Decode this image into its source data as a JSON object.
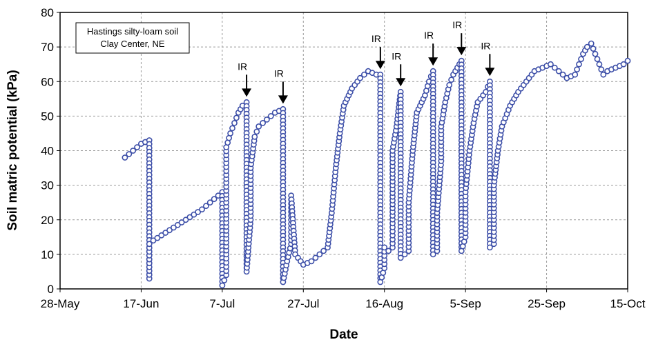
{
  "chart_data": {
    "type": "scatter",
    "xlabel": "Date",
    "ylabel": "Soil matric potential (kPa)",
    "ylim": [
      0,
      80
    ],
    "yticks": [
      0,
      10,
      20,
      30,
      40,
      50,
      60,
      70,
      80
    ],
    "xlim": [
      "2006-05-28",
      "2006-10-15"
    ],
    "xticks": [
      "28-May",
      "17-Jun",
      "7-Jul",
      "27-Jul",
      "16-Aug",
      "5-Sep",
      "25-Sep",
      "15-Oct"
    ],
    "grid": true,
    "marker_color": "#3d4fa8",
    "annotation_box": [
      "Hastings silty-loam soil",
      "Clay Center, NE"
    ],
    "irrigation_label": "IR",
    "irrigation_events": [
      {
        "date": "2006-07-13",
        "value": 54
      },
      {
        "date": "2006-07-22",
        "value": 52
      },
      {
        "date": "2006-08-15",
        "value": 62
      },
      {
        "date": "2006-08-20",
        "value": 57
      },
      {
        "date": "2006-08-28",
        "value": 63
      },
      {
        "date": "2006-09-04",
        "value": 66
      },
      {
        "date": "2006-09-11",
        "value": 60
      }
    ],
    "series": [
      {
        "points": [
          [
            "2006-06-13",
            38
          ],
          [
            "2006-06-14",
            39
          ],
          [
            "2006-06-15",
            40
          ],
          [
            "2006-06-16",
            41
          ],
          [
            "2006-06-17",
            42
          ],
          [
            "2006-06-18",
            42.5
          ],
          [
            "2006-06-19",
            43
          ],
          [
            "2006-06-19",
            3
          ],
          [
            "2006-06-19",
            13
          ],
          [
            "2006-06-20",
            14
          ],
          [
            "2006-06-22",
            15.5
          ],
          [
            "2006-06-24",
            17
          ],
          [
            "2006-06-26",
            18.5
          ],
          [
            "2006-06-28",
            20
          ],
          [
            "2006-06-30",
            21.5
          ],
          [
            "2006-07-02",
            23
          ],
          [
            "2006-07-04",
            25
          ],
          [
            "2006-07-06",
            27
          ],
          [
            "2006-07-07",
            28
          ],
          [
            "2006-07-07",
            1
          ],
          [
            "2006-07-08",
            4
          ],
          [
            "2006-07-08",
            10
          ],
          [
            "2006-07-08",
            18
          ],
          [
            "2006-07-08",
            25
          ],
          [
            "2006-07-08",
            33
          ],
          [
            "2006-07-08",
            41
          ],
          [
            "2006-07-09",
            45
          ],
          [
            "2006-07-10",
            48
          ],
          [
            "2006-07-11",
            51
          ],
          [
            "2006-07-12",
            53
          ],
          [
            "2006-07-13",
            54
          ],
          [
            "2006-07-13",
            5
          ],
          [
            "2006-07-14",
            20
          ],
          [
            "2006-07-14",
            35
          ],
          [
            "2006-07-15",
            44
          ],
          [
            "2006-07-16",
            47
          ],
          [
            "2006-07-18",
            49
          ],
          [
            "2006-07-20",
            51
          ],
          [
            "2006-07-22",
            52
          ],
          [
            "2006-07-22",
            2
          ],
          [
            "2006-07-23",
            8
          ],
          [
            "2006-07-24",
            13
          ],
          [
            "2006-07-24",
            20
          ],
          [
            "2006-07-24",
            27
          ],
          [
            "2006-07-25",
            10
          ],
          [
            "2006-07-27",
            7
          ],
          [
            "2006-07-29",
            8
          ],
          [
            "2006-07-31",
            10
          ],
          [
            "2006-08-02",
            12
          ],
          [
            "2006-08-03",
            22
          ],
          [
            "2006-08-04",
            35
          ],
          [
            "2006-08-05",
            45
          ],
          [
            "2006-08-06",
            53
          ],
          [
            "2006-08-08",
            58
          ],
          [
            "2006-08-10",
            61
          ],
          [
            "2006-08-12",
            63
          ],
          [
            "2006-08-14",
            62
          ],
          [
            "2006-08-15",
            62
          ],
          [
            "2006-08-15",
            2
          ],
          [
            "2006-08-16",
            6
          ],
          [
            "2006-08-16",
            12
          ],
          [
            "2006-08-17",
            11
          ],
          [
            "2006-08-18",
            12
          ],
          [
            "2006-08-18",
            19
          ],
          [
            "2006-08-18",
            30
          ],
          [
            "2006-08-18",
            40
          ],
          [
            "2006-08-19",
            47
          ],
          [
            "2006-08-20",
            57
          ],
          [
            "2006-08-20",
            9
          ],
          [
            "2006-08-21",
            10
          ],
          [
            "2006-08-22",
            11
          ],
          [
            "2006-08-22",
            25
          ],
          [
            "2006-08-23",
            40
          ],
          [
            "2006-08-24",
            51
          ],
          [
            "2006-08-26",
            56
          ],
          [
            "2006-08-27",
            60
          ],
          [
            "2006-08-28",
            63
          ],
          [
            "2006-08-28",
            10
          ],
          [
            "2006-08-29",
            11
          ],
          [
            "2006-08-29",
            22
          ],
          [
            "2006-08-30",
            37
          ],
          [
            "2006-08-30",
            47
          ],
          [
            "2006-08-31",
            54
          ],
          [
            "2006-09-01",
            59
          ],
          [
            "2006-09-02",
            62
          ],
          [
            "2006-09-03",
            64
          ],
          [
            "2006-09-04",
            66
          ],
          [
            "2006-09-04",
            11
          ],
          [
            "2006-09-05",
            15
          ],
          [
            "2006-09-05",
            28
          ],
          [
            "2006-09-06",
            40
          ],
          [
            "2006-09-07",
            48
          ],
          [
            "2006-09-08",
            54
          ],
          [
            "2006-09-10",
            57
          ],
          [
            "2006-09-11",
            60
          ],
          [
            "2006-09-11",
            12
          ],
          [
            "2006-09-12",
            13
          ],
          [
            "2006-09-12",
            20
          ],
          [
            "2006-09-12",
            30
          ],
          [
            "2006-09-13",
            40
          ],
          [
            "2006-09-14",
            47
          ],
          [
            "2006-09-16",
            53
          ],
          [
            "2006-09-18",
            57
          ],
          [
            "2006-09-20",
            60
          ],
          [
            "2006-09-22",
            63
          ],
          [
            "2006-09-24",
            64
          ],
          [
            "2006-09-26",
            65
          ],
          [
            "2006-09-28",
            63
          ],
          [
            "2006-09-30",
            61
          ],
          [
            "2006-10-02",
            62
          ],
          [
            "2006-10-03",
            65
          ],
          [
            "2006-10-04",
            68
          ],
          [
            "2006-10-05",
            70
          ],
          [
            "2006-10-06",
            71
          ],
          [
            "2006-10-07",
            68
          ],
          [
            "2006-10-08",
            65
          ],
          [
            "2006-10-09",
            62
          ],
          [
            "2006-10-10",
            63
          ],
          [
            "2006-10-12",
            64
          ],
          [
            "2006-10-14",
            65
          ],
          [
            "2006-10-15",
            66
          ]
        ]
      }
    ]
  }
}
